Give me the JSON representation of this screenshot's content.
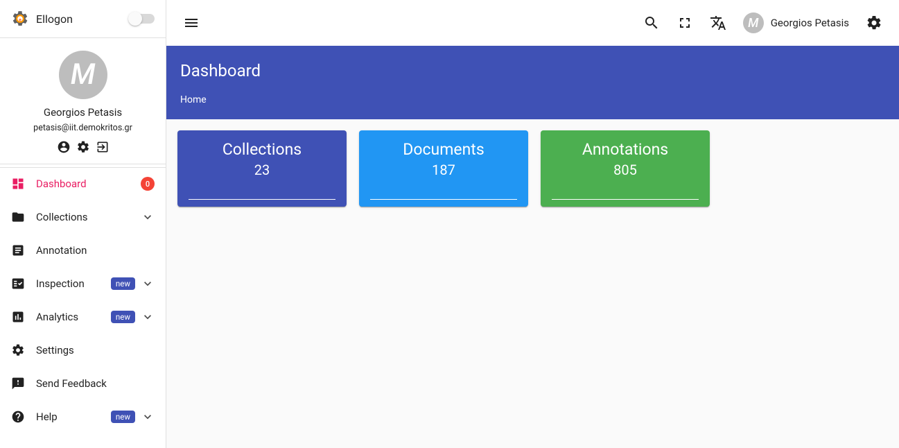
{
  "brand": {
    "name": "Ellogon"
  },
  "user": {
    "name": "Georgios Petasis",
    "email": "petasis@iit.demokritos.gr",
    "initial": "M"
  },
  "sidebar": {
    "items": [
      {
        "key": "dashboard",
        "label": "Dashboard",
        "icon": "dashboard",
        "active": true,
        "badge_count": "0"
      },
      {
        "key": "collections",
        "label": "Collections",
        "icon": "folder",
        "expandable": true
      },
      {
        "key": "annotation",
        "label": "Annotation",
        "icon": "article"
      },
      {
        "key": "inspection",
        "label": "Inspection",
        "icon": "factcheck",
        "new": "new",
        "expandable": true
      },
      {
        "key": "analytics",
        "label": "Analytics",
        "icon": "barchart",
        "new": "new",
        "expandable": true
      },
      {
        "key": "settings",
        "label": "Settings",
        "icon": "gear"
      },
      {
        "key": "feedback",
        "label": "Send Feedback",
        "icon": "feedback"
      },
      {
        "key": "help",
        "label": "Help",
        "icon": "help",
        "new": "new",
        "expandable": true
      }
    ]
  },
  "page": {
    "title": "Dashboard",
    "breadcrumb": "Home"
  },
  "cards": [
    {
      "title": "Collections",
      "value": "23",
      "color": "#3f51b5"
    },
    {
      "title": "Documents",
      "value": "187",
      "color": "#2196f3"
    },
    {
      "title": "Annotations",
      "value": "805",
      "color": "#4caf50"
    }
  ]
}
